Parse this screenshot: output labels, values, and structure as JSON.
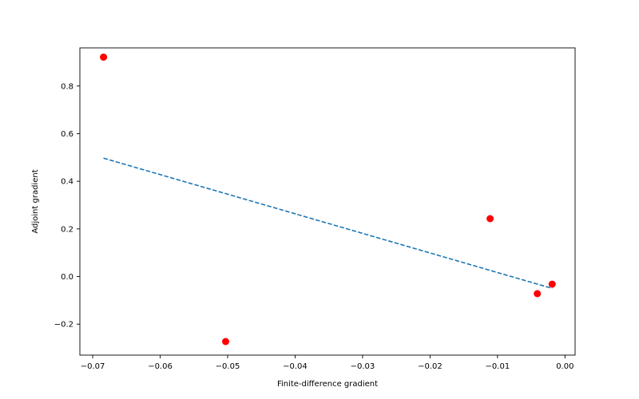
{
  "chart_data": {
    "type": "scatter",
    "title": "",
    "xlabel": "Finite-difference gradient",
    "ylabel": "Adjoint gradient",
    "xlim": [
      -0.0719,
      0.0015
    ],
    "ylim": [
      -0.33,
      0.96
    ],
    "grid": false,
    "legend": null,
    "x_ticks": [
      -0.07,
      -0.06,
      -0.05,
      -0.04,
      -0.03,
      -0.02,
      -0.01,
      0.0
    ],
    "x_tick_labels": [
      "−0.07",
      "−0.06",
      "−0.05",
      "−0.04",
      "−0.03",
      "−0.02",
      "−0.01",
      "0.00"
    ],
    "y_ticks": [
      -0.2,
      0.0,
      0.2,
      0.4,
      0.6,
      0.8
    ],
    "y_tick_labels": [
      "−0.2",
      "0.0",
      "0.2",
      "0.4",
      "0.6",
      "0.8"
    ],
    "series": [
      {
        "kind": "scatter",
        "color": "#ff0000",
        "points": [
          {
            "x": -0.0684,
            "y": 0.921
          },
          {
            "x": -0.0503,
            "y": -0.273
          },
          {
            "x": -0.0111,
            "y": 0.243
          },
          {
            "x": -0.0041,
            "y": -0.072
          },
          {
            "x": -0.0019,
            "y": -0.032
          }
        ]
      },
      {
        "kind": "line",
        "style": "dashed",
        "color": "#1f77b4",
        "points": [
          {
            "x": -0.0684,
            "y": 0.497
          },
          {
            "x": -0.0019,
            "y": -0.05
          }
        ]
      }
    ]
  }
}
